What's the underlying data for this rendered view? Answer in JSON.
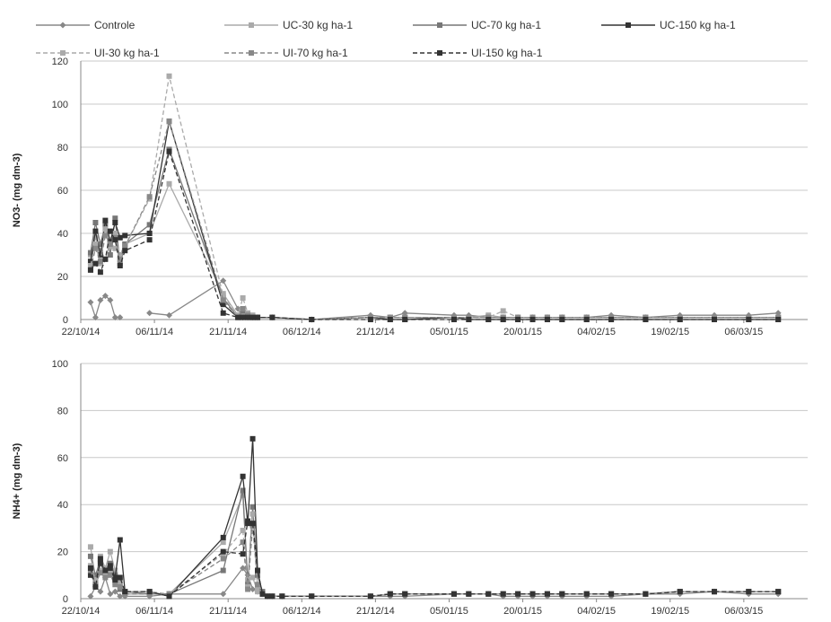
{
  "legend": [
    {
      "label": "Controle",
      "color": "#888888",
      "dash": false,
      "marker": "diamond"
    },
    {
      "label": "UC-30 kg ha-1",
      "color": "#aaaaaa",
      "dash": false,
      "marker": "square"
    },
    {
      "label": "UC-70 kg ha-1",
      "color": "#777777",
      "dash": false,
      "marker": "square"
    },
    {
      "label": "UC-150 kg ha-1",
      "color": "#333333",
      "dash": false,
      "marker": "square"
    },
    {
      "label": "UI-30 kg ha-1",
      "color": "#aaaaaa",
      "dash": true,
      "marker": "square"
    },
    {
      "label": "UI-70 kg ha-1",
      "color": "#888888",
      "dash": true,
      "marker": "square"
    },
    {
      "label": "UI-150 kg ha-1",
      "color": "#333333",
      "dash": true,
      "marker": "square"
    }
  ],
  "chart_data": [
    {
      "type": "line",
      "ylabel": "NO3- (mg dm-3)",
      "ylim": [
        0,
        120
      ],
      "yticks": [
        0,
        20,
        40,
        60,
        80,
        100,
        120
      ],
      "xlim": [
        "2014-10-22",
        "2015-03-19"
      ],
      "xticks": [
        "22/10/14",
        "06/11/14",
        "21/11/14",
        "06/12/14",
        "21/12/14",
        "05/01/15",
        "20/01/15",
        "04/02/15",
        "19/02/15",
        "06/03/15"
      ],
      "grid": true,
      "x": [
        "2014-10-24",
        "2014-10-25",
        "2014-10-26",
        "2014-10-27",
        "2014-10-28",
        "2014-10-29",
        "2014-10-30",
        "2014-10-31",
        "2014-11-05",
        "2014-11-09",
        "2014-11-20",
        "2014-11-23",
        "2014-11-24",
        "2014-11-25",
        "2014-11-26",
        "2014-11-27",
        "2014-11-30",
        "2014-12-08",
        "2014-12-20",
        "2014-12-24",
        "2014-12-27",
        "2015-01-06",
        "2015-01-09",
        "2015-01-13",
        "2015-01-16",
        "2015-01-19",
        "2015-01-22",
        "2015-01-25",
        "2015-01-28",
        "2015-02-02",
        "2015-02-07",
        "2015-02-14",
        "2015-02-21",
        "2015-02-28",
        "2015-03-07",
        "2015-03-13"
      ],
      "series": [
        {
          "name": "Controle",
          "values": [
            8,
            1,
            9,
            11,
            9,
            1,
            1,
            null,
            3,
            2,
            18,
            5,
            1,
            1,
            1,
            1,
            1,
            0,
            2,
            1,
            3,
            2,
            2,
            1,
            1,
            1,
            1,
            1,
            1,
            1,
            2,
            1,
            2,
            2,
            2,
            3
          ]
        },
        {
          "name": "UC-30 kg ha-1",
          "values": [
            30,
            38,
            32,
            28,
            36,
            33,
            30,
            35,
            40,
            63,
            12,
            2,
            3,
            1,
            1,
            1,
            1,
            0,
            1,
            1,
            1,
            1,
            1,
            2,
            1,
            1,
            1,
            1,
            1,
            1,
            1,
            1,
            1,
            1,
            1,
            1
          ]
        },
        {
          "name": "UC-70 kg ha-1",
          "values": [
            31,
            45,
            35,
            44,
            30,
            47,
            26,
            35,
            44,
            79,
            10,
            1,
            4,
            2,
            1,
            1,
            1,
            0,
            1,
            1,
            1,
            1,
            1,
            1,
            1,
            1,
            1,
            1,
            1,
            1,
            1,
            1,
            1,
            1,
            1,
            1
          ]
        },
        {
          "name": "UC-150 kg ha-1",
          "values": [
            27,
            41,
            30,
            46,
            36,
            45,
            38,
            39,
            40,
            92,
            7,
            1,
            1,
            1,
            1,
            1,
            1,
            0,
            1,
            0,
            0,
            1,
            0,
            0,
            0,
            0,
            0,
            0,
            0,
            0,
            0,
            0,
            0,
            0,
            0,
            0
          ]
        },
        {
          "name": "UI-30 kg ha-1",
          "values": [
            25,
            35,
            26,
            42,
            34,
            40,
            28,
            34,
            56,
            113,
            11,
            2,
            10,
            3,
            2,
            1,
            1,
            0,
            1,
            1,
            1,
            1,
            1,
            1,
            4,
            1,
            1,
            1,
            1,
            1,
            1,
            1,
            1,
            1,
            1,
            1
          ]
        },
        {
          "name": "UI-70 kg ha-1",
          "values": [
            23,
            33,
            27,
            39,
            35,
            38,
            28,
            34,
            57,
            92,
            9,
            1,
            5,
            2,
            1,
            1,
            1,
            0,
            1,
            1,
            1,
            1,
            1,
            1,
            1,
            1,
            1,
            1,
            1,
            1,
            1,
            1,
            1,
            1,
            1,
            1
          ]
        },
        {
          "name": "UI-150 kg ha-1",
          "values": [
            23,
            26,
            22,
            28,
            41,
            37,
            25,
            32,
            37,
            78,
            3,
            1,
            1,
            1,
            1,
            1,
            1,
            0,
            0,
            0,
            0,
            0,
            0,
            0,
            0,
            0,
            0,
            0,
            0,
            0,
            0,
            0,
            0,
            0,
            0,
            0
          ]
        }
      ]
    },
    {
      "type": "line",
      "ylabel": "NH4+ (mg dm-3)",
      "ylim": [
        0,
        100
      ],
      "yticks": [
        0,
        20,
        40,
        60,
        80,
        100
      ],
      "xlim": [
        "2014-10-22",
        "2015-03-19"
      ],
      "xticks": [
        "22/10/14",
        "06/11/14",
        "21/11/14",
        "06/12/14",
        "21/12/14",
        "05/01/15",
        "20/01/15",
        "04/02/15",
        "19/02/15",
        "06/03/15"
      ],
      "grid": true,
      "x": [
        "2014-10-24",
        "2014-10-25",
        "2014-10-26",
        "2014-10-27",
        "2014-10-28",
        "2014-10-29",
        "2014-10-30",
        "2014-10-31",
        "2014-11-05",
        "2014-11-09",
        "2014-11-20",
        "2014-11-24",
        "2014-11-25",
        "2014-11-26",
        "2014-11-27",
        "2014-11-28",
        "2014-11-29",
        "2014-11-30",
        "2014-12-02",
        "2014-12-08",
        "2014-12-20",
        "2014-12-24",
        "2014-12-27",
        "2015-01-06",
        "2015-01-09",
        "2015-01-13",
        "2015-01-16",
        "2015-01-19",
        "2015-01-22",
        "2015-01-25",
        "2015-01-28",
        "2015-02-02",
        "2015-02-07",
        "2015-02-14",
        "2015-02-21",
        "2015-02-28",
        "2015-03-07",
        "2015-03-13"
      ],
      "series": [
        {
          "name": "Controle",
          "values": [
            1,
            5,
            3,
            9,
            2,
            3,
            1,
            1,
            1,
            2,
            2,
            13,
            10,
            4,
            3,
            2,
            1,
            1,
            1,
            1,
            1,
            1,
            1,
            2,
            2,
            2,
            1,
            1,
            1,
            1,
            1,
            1,
            1,
            2,
            2,
            3,
            2,
            2
          ]
        },
        {
          "name": "UC-30 kg ha-1",
          "values": [
            22,
            9,
            18,
            13,
            20,
            12,
            8,
            2,
            2,
            2,
            24,
            44,
            8,
            9,
            3,
            2,
            1,
            1,
            1,
            1,
            1,
            2,
            2,
            2,
            2,
            2,
            2,
            2,
            2,
            2,
            2,
            2,
            2,
            2,
            3,
            3,
            3,
            3
          ]
        },
        {
          "name": "UC-70 kg ha-1",
          "values": [
            18,
            10,
            16,
            12,
            15,
            10,
            4,
            3,
            2,
            2,
            12,
            46,
            6,
            39,
            10,
            3,
            1,
            1,
            1,
            1,
            1,
            2,
            2,
            2,
            2,
            2,
            2,
            2,
            2,
            2,
            2,
            2,
            2,
            2,
            3,
            3,
            3,
            3
          ]
        },
        {
          "name": "UC-150 kg ha-1",
          "values": [
            10,
            7,
            15,
            11,
            14,
            9,
            25,
            3,
            3,
            1,
            26,
            52,
            32,
            68,
            12,
            2,
            1,
            1,
            1,
            1,
            1,
            2,
            2,
            2,
            2,
            2,
            2,
            2,
            2,
            2,
            2,
            2,
            2,
            2,
            3,
            3,
            3,
            3
          ]
        },
        {
          "name": "UI-30 kg ha-1",
          "values": [
            14,
            8,
            12,
            10,
            12,
            7,
            6,
            3,
            3,
            2,
            19,
            29,
            5,
            36,
            5,
            2,
            1,
            1,
            1,
            1,
            1,
            2,
            2,
            2,
            2,
            2,
            2,
            2,
            2,
            2,
            2,
            2,
            2,
            2,
            3,
            3,
            3,
            3
          ]
        },
        {
          "name": "UI-70 kg ha-1",
          "values": [
            12,
            6,
            11,
            9,
            10,
            6,
            5,
            2,
            2,
            2,
            17,
            24,
            4,
            31,
            6,
            2,
            1,
            1,
            1,
            1,
            1,
            2,
            2,
            2,
            2,
            2,
            2,
            2,
            2,
            2,
            2,
            2,
            2,
            2,
            3,
            3,
            3,
            3
          ]
        },
        {
          "name": "UI-150 kg ha-1",
          "values": [
            13,
            5,
            17,
            12,
            13,
            8,
            9,
            3,
            3,
            1,
            20,
            19,
            33,
            32,
            12,
            2,
            1,
            1,
            1,
            1,
            1,
            2,
            2,
            2,
            2,
            2,
            2,
            2,
            2,
            2,
            2,
            2,
            2,
            2,
            3,
            3,
            3,
            3
          ]
        }
      ]
    }
  ]
}
